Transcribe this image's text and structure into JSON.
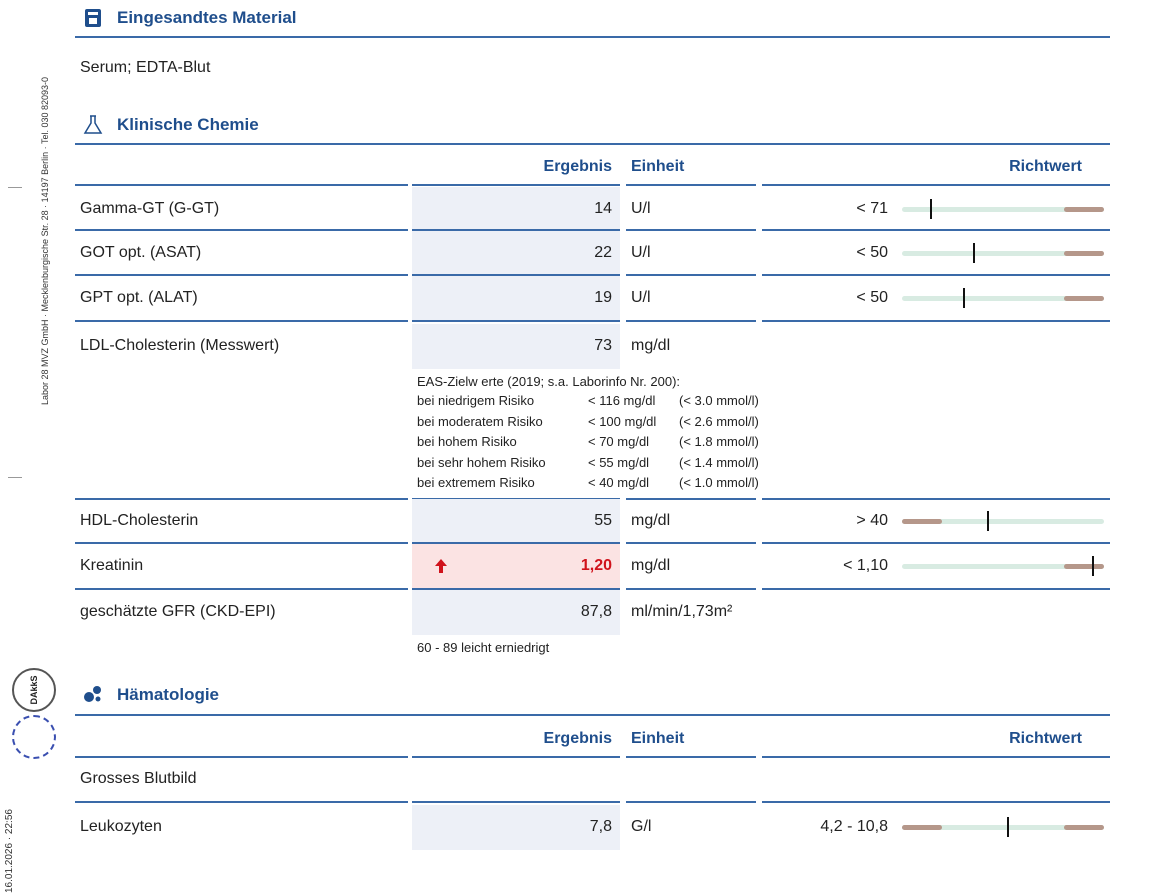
{
  "sidebar": {
    "address": "Labor 28 MVZ GmbH · Mecklenburgische Str. 28 · 14197 Berlin · Tel. 030 82093-0",
    "timestamp": "16.01.2026 · 22:56",
    "logo": "DAkkS"
  },
  "material": {
    "title": "Eingesandtes Material",
    "text": "Serum; EDTA-Blut"
  },
  "chemistry": {
    "title": "Klinische Chemie",
    "headers": [
      "Ergebnis",
      "Einheit",
      "Richtwert"
    ],
    "rows": [
      {
        "name": "Gamma-GT (G-GT)",
        "result": "14",
        "unit": "U/l",
        "reference": "< 71"
      },
      {
        "name": "GOT opt. (ASAT)",
        "result": "22",
        "unit": "U/l",
        "reference": "< 50"
      },
      {
        "name": "GPT opt. (ALAT)",
        "result": "19",
        "unit": "U/l",
        "reference": "< 50"
      },
      {
        "name": "LDL-Cholesterin (Messwert)",
        "result": "73",
        "unit": "mg/dl"
      },
      {
        "name": "HDL-Cholesterin",
        "result": "55",
        "unit": "mg/dl",
        "reference": "> 40"
      },
      {
        "name": "Kreatinin",
        "result": "1,20",
        "unit": "mg/dl",
        "reference": "< 1,10"
      },
      {
        "name": "geschätzte GFR (CKD-EPI)",
        "result": "87,8",
        "unit": "ml/min/1,73m²"
      }
    ],
    "ldl_note": {
      "heading": "EAS-Zielw erte (2019; s.a. Laborinfo Nr. 200):",
      "lines": [
        [
          "bei niedrigem Risiko",
          "< 116 mg/dl",
          "(< 3.0 mmol/l)"
        ],
        [
          "bei moderatem Risiko",
          "< 100 mg/dl",
          "(< 2.6 mmol/l)"
        ],
        [
          "bei hohem Risiko",
          "< 70 mg/dl",
          "(< 1.8 mmol/l)"
        ],
        [
          "bei sehr hohem Risiko",
          "< 55 mg/dl",
          "(< 1.4 mmol/l)"
        ],
        [
          "bei extremem Risiko",
          "< 40 mg/dl",
          "(< 1.0 mmol/l)"
        ]
      ]
    },
    "gfr_note": "60 - 89  leicht erniedrigt"
  },
  "hematology": {
    "title": "Hämatologie",
    "headers": [
      "Ergebnis",
      "Einheit",
      "Richtwert"
    ],
    "group": "Grosses Blutbild",
    "rows": [
      {
        "name": "Leukozyten",
        "result": "7,8",
        "unit": "G/l",
        "reference": "4,2 - 10,8"
      }
    ]
  }
}
